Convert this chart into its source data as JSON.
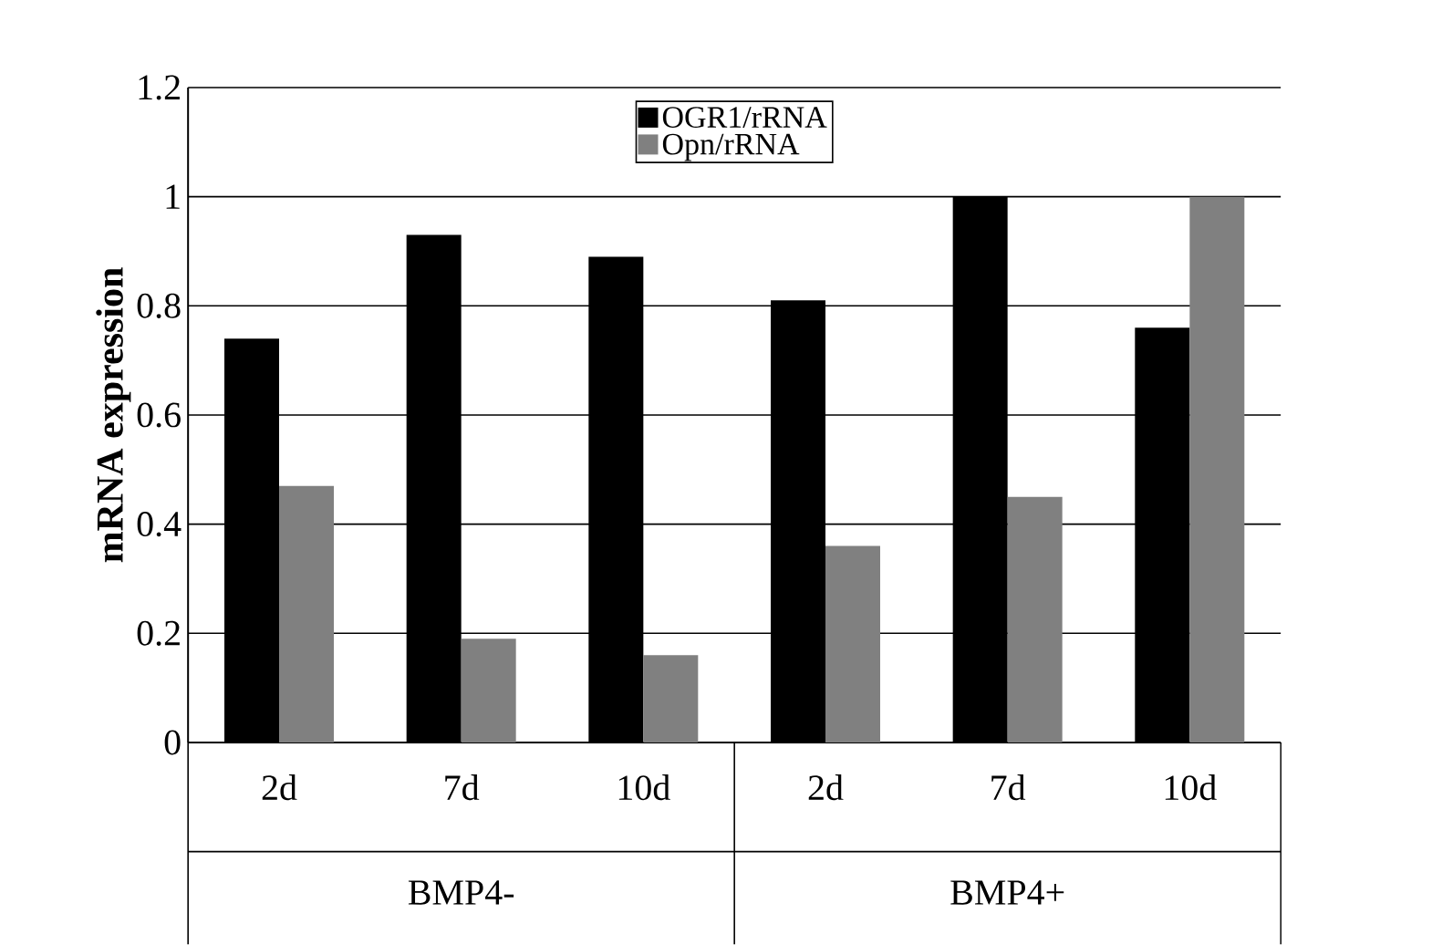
{
  "chart_data": {
    "type": "bar",
    "ylabel": "mRNA expression",
    "categories": [
      "2d",
      "7d",
      "10d",
      "2d",
      "7d",
      "10d"
    ],
    "series": [
      {
        "name": "OGR1/rRNA",
        "color": "#000000",
        "values": [
          0.74,
          0.93,
          0.89,
          0.81,
          1.0,
          0.76
        ]
      },
      {
        "name": "Opn/rRNA",
        "color": "#808080",
        "values": [
          0.47,
          0.19,
          0.16,
          0.36,
          0.45,
          1.0
        ]
      }
    ],
    "annotations": [
      "BMP4-",
      "BMP4+"
    ],
    "ylim": [
      0,
      1.2
    ],
    "yticks": [
      0,
      0.2,
      0.4,
      0.6,
      0.8,
      1,
      1.2
    ],
    "grid": "y",
    "legend": "top"
  }
}
